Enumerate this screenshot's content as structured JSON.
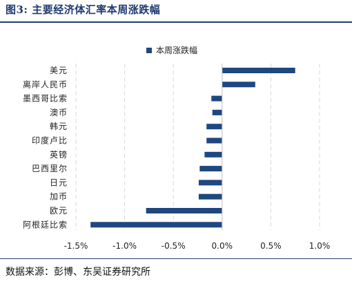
{
  "figure": {
    "title": "图3:  主要经济体汇率本周涨跌幅",
    "source": "数据来源：彭博、东吴证券研究所"
  },
  "colors": {
    "bar": "#1f4780",
    "grid": "#d9d9d9",
    "title": "#1f3a6e"
  },
  "chart_data": {
    "type": "bar",
    "orientation": "horizontal",
    "legend_position": "top-center",
    "grid": "vertical-dashed",
    "categories": [
      "美元",
      "离岸人民币",
      "墨西哥比索",
      "澳币",
      "韩元",
      "印度卢比",
      "英镑",
      "巴西里尔",
      "日元",
      "加币",
      "欧元",
      "阿根廷比索"
    ],
    "series": [
      {
        "name": "本周涨跌幅",
        "values": [
          0.75,
          0.34,
          -0.11,
          -0.1,
          -0.16,
          -0.16,
          -0.18,
          -0.23,
          -0.24,
          -0.24,
          -0.78,
          -1.35
        ]
      }
    ],
    "xlim": [
      -1.5,
      1.0
    ],
    "xticks": [
      -1.5,
      -1.0,
      -0.5,
      0.0,
      0.5,
      1.0
    ],
    "xtick_labels": [
      "-1.5%",
      "-1.0%",
      "-0.5%",
      "0.0%",
      "0.5%",
      "1.0%"
    ]
  }
}
